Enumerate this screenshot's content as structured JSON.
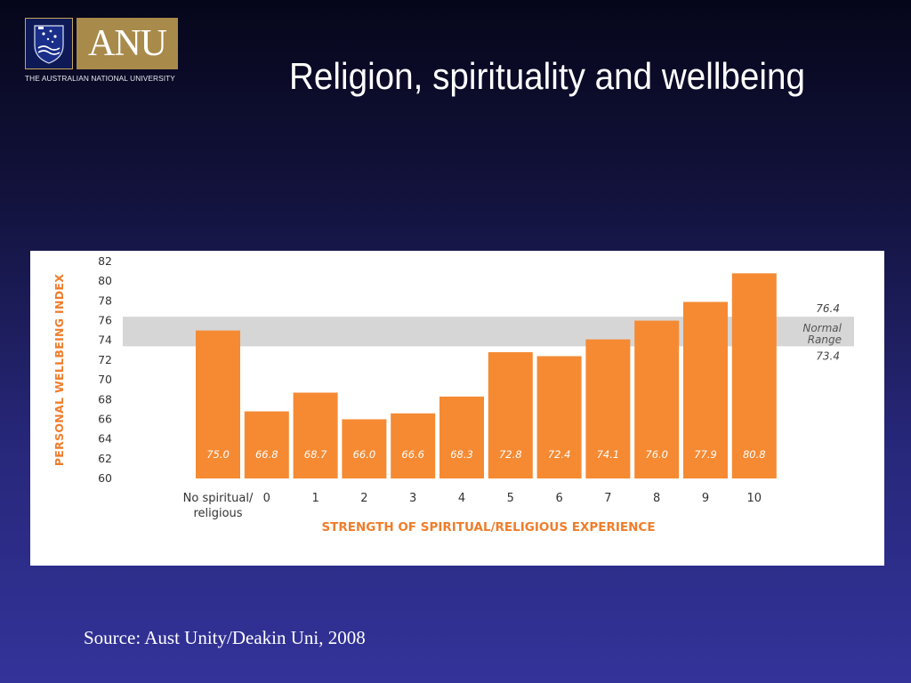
{
  "logo": {
    "wordmark": "ANU",
    "subtitle": "THE AUSTRALIAN NATIONAL UNIVERSITY",
    "colors": {
      "gold": "#a88a4a",
      "navy": "#0e1a55"
    }
  },
  "slide": {
    "title": "Religion, spirituality and wellbeing",
    "source": "Source: Aust Unity/Deakin Uni, 2008"
  },
  "colors": {
    "bar": "#f58a33",
    "band": "#d6d6d6",
    "axis_text": "#333333",
    "label_orange": "#ef7d2b"
  },
  "chart_data": {
    "type": "bar",
    "categories": [
      "No spiritual/ religious",
      "0",
      "1",
      "2",
      "3",
      "4",
      "5",
      "6",
      "7",
      "8",
      "9",
      "10"
    ],
    "category_lines": [
      [
        "No spiritual/",
        "religious"
      ],
      [
        "0"
      ],
      [
        "1"
      ],
      [
        "2"
      ],
      [
        "3"
      ],
      [
        "4"
      ],
      [
        "5"
      ],
      [
        "6"
      ],
      [
        "7"
      ],
      [
        "8"
      ],
      [
        "9"
      ],
      [
        "10"
      ]
    ],
    "values": [
      75.0,
      66.8,
      68.7,
      66.0,
      66.6,
      68.3,
      72.8,
      72.4,
      74.1,
      76.0,
      77.9,
      80.8
    ],
    "value_labels": [
      "75.0",
      "66.8",
      "68.7",
      "66.0",
      "66.6",
      "68.3",
      "72.8",
      "72.4",
      "74.1",
      "76.0",
      "77.9",
      "80.8"
    ],
    "ylabel": "PERSONAL WELLBEING INDEX",
    "xlabel": "STRENGTH OF SPIRITUAL/RELIGIOUS EXPERIENCE",
    "ylim": [
      60,
      82
    ],
    "yticks": [
      82,
      80,
      78,
      76,
      74,
      72,
      70,
      68,
      66,
      64,
      62,
      60
    ],
    "normal_range": {
      "upper": 76.4,
      "lower": 73.4,
      "upper_label": "76.4",
      "lower_label": "73.4",
      "label_lines": [
        "Normal",
        "Range"
      ]
    },
    "grid": false,
    "legend": "none"
  }
}
